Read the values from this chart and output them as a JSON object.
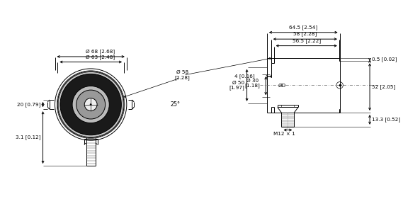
{
  "bg_color": "#ffffff",
  "lc": "#000000",
  "fig_width": 5.69,
  "fig_height": 2.81,
  "ann": {
    "d68": "Ø 68 [2.68]",
    "d63": "Ø 63 [2.48]",
    "d58": "Ø 58\n[2.28]",
    "d50": "Ø 50\n[1.97]",
    "d30": "Ø 30\n[1.18]",
    "dD": "ØD",
    "w20": "20 [0.79]",
    "w31": "3.1 [0.12]",
    "ang25": "25°",
    "t645": "64.5 [2.54]",
    "t58": "58 [2.28]",
    "t565": "56.5 [2.22]",
    "t4": "4 [0.16]",
    "t05": "0.5 [0.02]",
    "h52": "52 [2.05]",
    "h133": "13.3 [0.52]",
    "m12": "M12 × 1"
  }
}
